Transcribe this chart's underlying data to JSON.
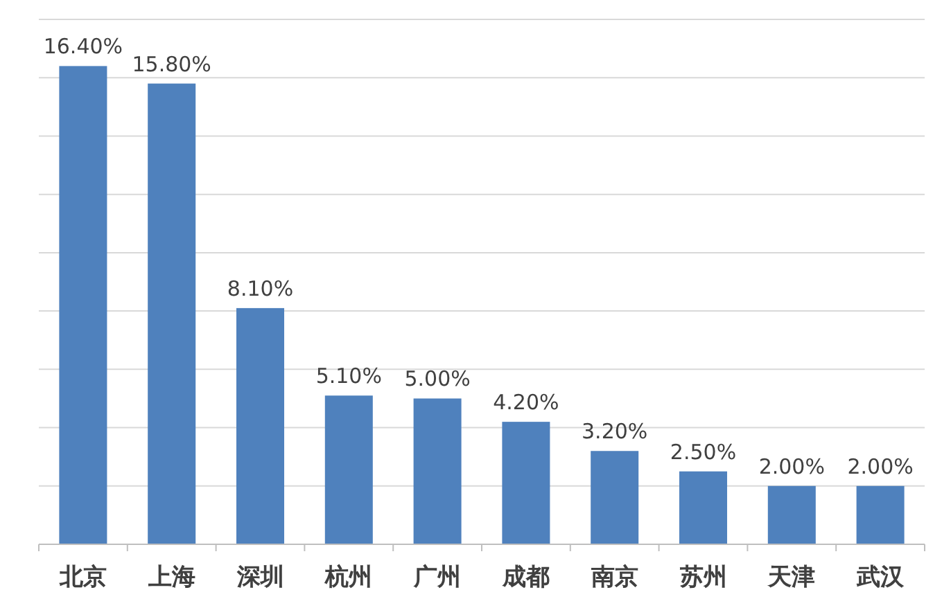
{
  "chart_data": {
    "type": "bar",
    "categories": [
      "北京",
      "上海",
      "深圳",
      "杭州",
      "广州",
      "成都",
      "南京",
      "苏州",
      "天津",
      "武汉"
    ],
    "values": [
      16.4,
      15.8,
      8.1,
      5.1,
      5.0,
      4.2,
      3.2,
      2.5,
      2.0,
      2.0
    ],
    "value_labels": [
      "16.40%",
      "15.80%",
      "8.10%",
      "5.10%",
      "5.00%",
      "4.20%",
      "3.20%",
      "2.50%",
      "2.00%",
      "2.00%"
    ],
    "color": "#4f81bd",
    "ylim": [
      0,
      18
    ],
    "yticks": [
      {
        "value": 0,
        "label": null
      },
      {
        "value": 2,
        "label": null
      },
      {
        "value": 4,
        "label": null
      },
      {
        "value": 6,
        "label": null
      },
      {
        "value": 8,
        "label": null
      },
      {
        "value": 10,
        "label": null
      },
      {
        "value": 12,
        "label": null
      },
      {
        "value": 14,
        "label": null
      },
      {
        "value": 16,
        "label": null
      },
      {
        "value": 18,
        "label": null
      }
    ],
    "grid": "y",
    "tick_labels": "x"
  }
}
